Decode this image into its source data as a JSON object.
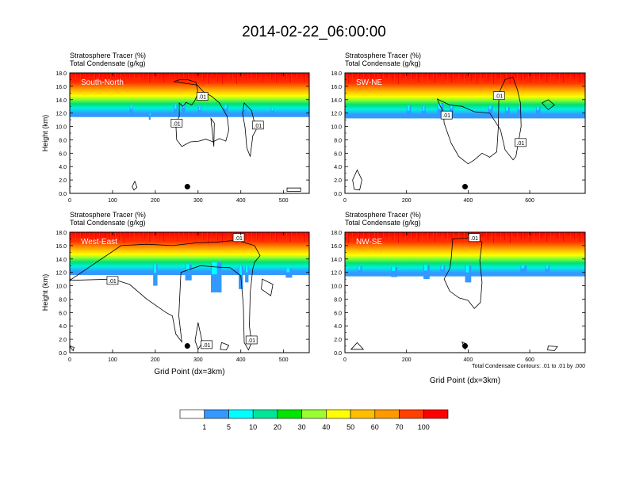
{
  "title": "2014-02-22_06:00:00",
  "colors": {
    "red": "#ff0000",
    "orange_red": "#ff4000",
    "orange": "#ff9900",
    "gold": "#ffbf00",
    "yellow": "#ffff00",
    "lime": "#99ff33",
    "green": "#00e600",
    "aquamarine": "#00e699",
    "cyan": "#00ffff",
    "blue": "#3399ff",
    "white": "#ffffff",
    "contour": "#000000"
  },
  "colorbar": {
    "labels": [
      "1",
      "5",
      "10",
      "20",
      "30",
      "40",
      "50",
      "60",
      "70",
      "100"
    ],
    "fills": [
      "#ffffff",
      "#3399ff",
      "#00ffff",
      "#00e699",
      "#00e600",
      "#99ff33",
      "#ffff00",
      "#ffbf00",
      "#ff9900",
      "#ff4000",
      "#ff0000"
    ]
  },
  "footnote": "Total Condensate Contours: .01 to .01 by .000",
  "chart_data": [
    {
      "type": "heatmap",
      "field_label": "Stratosphere Tracer   (%)",
      "field2_label": "Total Condensate   (g/kg)",
      "panel_label": "South-North",
      "ylabel": "Height (km)",
      "xlabel": "",
      "ylim": [
        0,
        18
      ],
      "xlim": [
        0,
        560
      ],
      "yticks": [
        "0.0",
        "2.0",
        "4.0",
        "6.0",
        "8.0",
        "10.0",
        "12.0",
        "14.0",
        "16.0",
        "18.0"
      ],
      "xticks": [
        {
          "v": 0,
          "l": "0"
        },
        {
          "v": 100,
          "l": "100"
        },
        {
          "v": 200,
          "l": "200"
        },
        {
          "v": 300,
          "l": "300"
        },
        {
          "v": 400,
          "l": "400"
        },
        {
          "v": 500,
          "l": "500"
        }
      ],
      "tropopause_km": 15.0,
      "low_streaks": [
        [
          140,
          147,
          11.7,
          13.2
        ],
        [
          185,
          189,
          11.0,
          12.0
        ],
        [
          243,
          252,
          11.6,
          13.3
        ],
        [
          262,
          270,
          11.8,
          13.5
        ],
        [
          300,
          308,
          11.6,
          13.0
        ],
        [
          360,
          370,
          11.8,
          13.2
        ],
        [
          405,
          413,
          11.6,
          13.1
        ],
        [
          470,
          477,
          11.7,
          12.8
        ]
      ],
      "marker": {
        "x": 275,
        "y": 1.0
      },
      "contour_labels": [
        {
          "x": 250,
          "y": 10.5,
          "text": ".01"
        },
        {
          "x": 440,
          "y": 10.2,
          "text": ".01"
        },
        {
          "x": 310,
          "y": 14.5,
          "text": ".01"
        }
      ],
      "contours": [
        [
          [
            243,
            16.7
          ],
          [
            258,
            17.0
          ],
          [
            275,
            17.0
          ],
          [
            295,
            16.6
          ],
          [
            300,
            15.0
          ],
          [
            292,
            13.8
          ],
          [
            285,
            13.2
          ],
          [
            272,
            13.6
          ],
          [
            264,
            13.0
          ],
          [
            256,
            13.5
          ],
          [
            256,
            11.5
          ],
          [
            248,
            10.5
          ],
          [
            250,
            8.0
          ],
          [
            262,
            7.0
          ],
          [
            282,
            7.7
          ],
          [
            302,
            7.8
          ],
          [
            318,
            8.1
          ],
          [
            335,
            7.7
          ],
          [
            350,
            8.2
          ],
          [
            365,
            7.8
          ],
          [
            372,
            9.5
          ],
          [
            368,
            11.5
          ],
          [
            350,
            13.5
          ],
          [
            332,
            14.5
          ],
          [
            312,
            15.2
          ],
          [
            298,
            16.2
          ]
        ],
        [
          [
            408,
            13.5
          ],
          [
            425,
            12.4
          ],
          [
            436,
            9.5
          ],
          [
            428,
            8.6
          ],
          [
            422,
            5.5
          ],
          [
            414,
            6.8
          ],
          [
            410,
            9.8
          ],
          [
            404,
            12.0
          ]
        ],
        [
          [
            330,
            11.2
          ],
          [
            338,
            10.5
          ],
          [
            337,
            7.0
          ],
          [
            332,
            10.0
          ]
        ],
        [
          [
            146,
            1.0
          ],
          [
            152,
            1.8
          ],
          [
            157,
            0.9
          ],
          [
            150,
            0.5
          ]
        ],
        [
          [
            508,
            0.8
          ],
          [
            540,
            0.8
          ],
          [
            540,
            0.3
          ],
          [
            508,
            0.3
          ]
        ]
      ]
    },
    {
      "type": "heatmap",
      "field_label": "Stratosphere Tracer   (%)",
      "field2_label": "Total Condensate   (g/kg)",
      "panel_label": "SW-NE",
      "ylabel": "",
      "xlabel": "",
      "ylim": [
        0,
        18
      ],
      "xlim": [
        0,
        780
      ],
      "yticks": [
        "0.0",
        "2.0",
        "4.0",
        "6.0",
        "8.0",
        "10.0",
        "12.0",
        "14.0",
        "16.0",
        "18.0"
      ],
      "xticks": [
        {
          "v": 0,
          "l": "0"
        },
        {
          "v": 200,
          "l": "200"
        },
        {
          "v": 400,
          "l": "400"
        },
        {
          "v": 600,
          "l": "600"
        }
      ],
      "tropopause_km": 14.8,
      "low_streaks": [
        [
          200,
          215,
          11.2,
          13.1
        ],
        [
          250,
          262,
          11.3,
          13.0
        ],
        [
          300,
          320,
          11.2,
          13.5
        ],
        [
          340,
          352,
          11.8,
          13.2
        ],
        [
          465,
          480,
          11.7,
          13.1
        ],
        [
          520,
          535,
          11.5,
          12.9
        ],
        [
          560,
          572,
          11.8,
          13.0
        ],
        [
          620,
          635,
          11.7,
          12.9
        ]
      ],
      "marker": {
        "x": 390,
        "y": 1.0
      },
      "contour_labels": [
        {
          "x": 330,
          "y": 11.7,
          "text": ".01"
        },
        {
          "x": 570,
          "y": 7.6,
          "text": ".01"
        },
        {
          "x": 500,
          "y": 14.6,
          "text": ".01"
        }
      ],
      "contours": [
        [
          [
            300,
            14.1
          ],
          [
            310,
            13.0
          ],
          [
            320,
            12.2
          ],
          [
            322,
            10.5
          ],
          [
            345,
            7.5
          ],
          [
            370,
            5.5
          ],
          [
            400,
            4.4
          ],
          [
            420,
            5.0
          ],
          [
            445,
            6.0
          ],
          [
            470,
            5.4
          ],
          [
            493,
            6.2
          ],
          [
            498,
            10.0
          ],
          [
            500,
            15.0
          ],
          [
            520,
            17.0
          ],
          [
            545,
            17.4
          ],
          [
            560,
            15.5
          ],
          [
            570,
            13.5
          ],
          [
            572,
            10.0
          ],
          [
            555,
            5.5
          ],
          [
            546,
            5.0
          ],
          [
            520,
            6.5
          ],
          [
            505,
            9.5
          ],
          [
            470,
            12.0
          ],
          [
            420,
            12.2
          ],
          [
            380,
            13.0
          ],
          [
            340,
            13.2
          ]
        ],
        [
          [
            25,
            2.0
          ],
          [
            40,
            3.5
          ],
          [
            55,
            2.0
          ],
          [
            48,
            0.5
          ],
          [
            30,
            0.6
          ]
        ],
        [
          [
            640,
            13.5
          ],
          [
            660,
            14.0
          ],
          [
            680,
            13.2
          ],
          [
            660,
            12.5
          ]
        ]
      ]
    },
    {
      "type": "heatmap",
      "field_label": "Stratosphere Tracer   (%)",
      "field2_label": "Total Condensate   (g/kg)",
      "panel_label": "West-East",
      "ylabel": "Height (km)",
      "xlabel": "Grid Point (dx=3km)",
      "ylim": [
        0,
        18
      ],
      "xlim": [
        0,
        560
      ],
      "yticks": [
        "0.0",
        "2.0",
        "4.0",
        "6.0",
        "8.0",
        "10.0",
        "12.0",
        "14.0",
        "16.0",
        "18.0"
      ],
      "xticks": [
        {
          "v": 0,
          "l": "0"
        },
        {
          "v": 100,
          "l": "100"
        },
        {
          "v": 200,
          "l": "200"
        },
        {
          "v": 300,
          "l": "300"
        },
        {
          "v": 400,
          "l": "400"
        },
        {
          "v": 500,
          "l": "500"
        }
      ],
      "tropopause_km": 15.2,
      "low_streaks": [
        [
          195,
          205,
          10.0,
          13.2
        ],
        [
          270,
          285,
          10.8,
          13.2
        ],
        [
          330,
          355,
          9.0,
          13.5
        ],
        [
          395,
          405,
          9.5,
          13.0
        ],
        [
          410,
          418,
          10.5,
          13.0
        ],
        [
          505,
          520,
          11.2,
          12.6
        ]
      ],
      "marker": {
        "x": 275,
        "y": 1.0
      },
      "contour_labels": [
        {
          "x": 100,
          "y": 10.8,
          "text": ".01"
        },
        {
          "x": 320,
          "y": 1.2,
          "text": ".01"
        },
        {
          "x": 425,
          "y": 1.9,
          "text": ".01"
        },
        {
          "x": 395,
          "y": 17.2,
          "text": ".01"
        }
      ],
      "contours": [
        [
          [
            120,
            16.0
          ],
          [
            180,
            16.2
          ],
          [
            240,
            16.0
          ],
          [
            295,
            16.4
          ],
          [
            340,
            16.5
          ],
          [
            390,
            16.8
          ],
          [
            432,
            16.0
          ],
          [
            445,
            14.5
          ],
          [
            432,
            13.5
          ],
          [
            428,
            12.5
          ],
          [
            422,
            9.0
          ],
          [
            420,
            4.0
          ],
          [
            425,
            1.5
          ],
          [
            418,
            0.4
          ],
          [
            408,
            1.5
          ],
          [
            406,
            7.0
          ],
          [
            400,
            11.5
          ],
          [
            375,
            12.7
          ],
          [
            340,
            12.8
          ],
          [
            306,
            13.0
          ],
          [
            260,
            12.0
          ],
          [
            255,
            5.5
          ],
          [
            262,
            1.6
          ],
          [
            248,
            2.8
          ],
          [
            240,
            5.5
          ],
          [
            225,
            6.0
          ],
          [
            180,
            8.0
          ],
          [
            140,
            10.2
          ],
          [
            100,
            11.0
          ],
          [
            0,
            10.8
          ]
        ],
        [
          [
            300,
            4.5
          ],
          [
            310,
            1.5
          ],
          [
            300,
            0.5
          ],
          [
            293,
            1.8
          ]
        ],
        [
          [
            355,
            1.5
          ],
          [
            372,
            1.1
          ],
          [
            366,
            0.4
          ],
          [
            352,
            0.5
          ]
        ],
        [
          [
            450,
            11.0
          ],
          [
            475,
            10.2
          ],
          [
            470,
            8.5
          ],
          [
            448,
            9.5
          ]
        ],
        [
          [
            0,
            0.9
          ],
          [
            10,
            0.8
          ],
          [
            8,
            0.3
          ]
        ]
      ]
    },
    {
      "type": "heatmap",
      "field_label": "Stratosphere Tracer   (%)",
      "field2_label": "Total Condensate   (g/kg)",
      "panel_label": "NW-SE",
      "ylabel": "",
      "xlabel": "Grid Point (dx=3km)",
      "ylim": [
        0,
        18
      ],
      "xlim": [
        0,
        780
      ],
      "yticks": [
        "0.0",
        "2.0",
        "4.0",
        "6.0",
        "8.0",
        "10.0",
        "12.0",
        "14.0",
        "16.0",
        "18.0"
      ],
      "xticks": [
        {
          "v": 0,
          "l": "0"
        },
        {
          "v": 200,
          "l": "200"
        },
        {
          "v": 400,
          "l": "400"
        },
        {
          "v": 600,
          "l": "600"
        }
      ],
      "tropopause_km": 15.0,
      "low_streaks": [
        [
          40,
          55,
          11.5,
          12.9
        ],
        [
          150,
          170,
          11.3,
          12.8
        ],
        [
          255,
          275,
          11.0,
          13.1
        ],
        [
          310,
          325,
          11.6,
          13.0
        ],
        [
          390,
          410,
          10.5,
          13.0
        ],
        [
          570,
          590,
          12.0,
          13.0
        ],
        [
          650,
          665,
          11.8,
          13.0
        ]
      ],
      "marker": {
        "x": 390,
        "y": 1.0
      },
      "contour_labels": [
        {
          "x": 420,
          "y": 17.2,
          "text": ".01"
        }
      ],
      "contours": [
        [
          [
            350,
            17.0
          ],
          [
            392,
            17.1
          ],
          [
            420,
            17.3
          ],
          [
            445,
            16.5
          ],
          [
            438,
            13.8
          ],
          [
            445,
            10.5
          ],
          [
            440,
            7.5
          ],
          [
            420,
            6.6
          ],
          [
            400,
            7.8
          ],
          [
            370,
            8.2
          ],
          [
            340,
            9.2
          ],
          [
            322,
            11.0
          ],
          [
            340,
            12.5
          ],
          [
            345,
            14.0
          ],
          [
            348,
            15.8
          ]
        ],
        [
          [
            20,
            0.5
          ],
          [
            40,
            1.5
          ],
          [
            60,
            0.5
          ]
        ],
        [
          [
            380,
            1.6
          ],
          [
            395,
            1.3
          ],
          [
            390,
            0.5
          ]
        ],
        [
          [
            660,
            1.0
          ],
          [
            690,
            0.9
          ],
          [
            680,
            0.3
          ],
          [
            658,
            0.4
          ]
        ]
      ]
    }
  ]
}
